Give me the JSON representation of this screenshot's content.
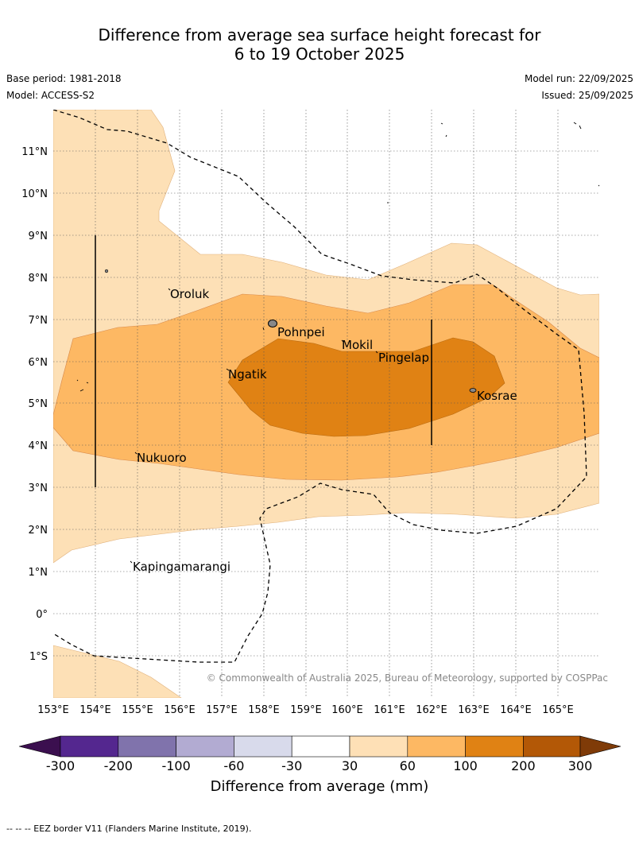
{
  "header": {
    "title_line1": "Difference from average sea surface height forecast for",
    "title_line2": "6 to 19 October 2025",
    "base_period": "Base period: 1981-2018",
    "model": "Model: ACCESS-S2",
    "model_run": "Model run: 22/09/2025",
    "issued": "Issued: 25/09/2025"
  },
  "map": {
    "lon_labels": [
      "153°E",
      "154°E",
      "155°E",
      "156°E",
      "157°E",
      "158°E",
      "159°E",
      "160°E",
      "161°E",
      "162°E",
      "163°E",
      "164°E",
      "165°E"
    ],
    "lat_labels": [
      "11°N",
      "10°N",
      "9°N",
      "8°N",
      "7°N",
      "6°N",
      "5°N",
      "4°N",
      "3°N",
      "2°N",
      "1°N",
      "0°",
      "1°S"
    ],
    "places": [
      {
        "name": "Oroluk"
      },
      {
        "name": "Pohnpei"
      },
      {
        "name": "Mokil"
      },
      {
        "name": "Pingelap"
      },
      {
        "name": "Ngatik"
      },
      {
        "name": "Kosrae"
      },
      {
        "name": "Nukuoro"
      },
      {
        "name": "Kapingamarangi"
      }
    ],
    "copyright": "© Commonwealth of Australia 2025, Bureau of Meteorology, supported by COSPPac"
  },
  "colorbar": {
    "ticks": [
      "-300",
      "-200",
      "-100",
      "-60",
      "-30",
      "30",
      "60",
      "100",
      "200",
      "300"
    ],
    "title": "Difference from average (mm)",
    "colors": {
      "below": "#3b0f4f",
      "c1": "#54278f",
      "c2": "#8073ac",
      "c3": "#b2abd2",
      "c4": "#d8daeb",
      "c5": "#ffffff",
      "c6": "#fee0b6",
      "c7": "#fdb863",
      "c8": "#e08214",
      "c9": "#b35806",
      "above": "#7f3b08"
    }
  },
  "footer": {
    "legend": "-- -- -- EEZ border V11 (Flanders Marine Institute, 2019)."
  }
}
